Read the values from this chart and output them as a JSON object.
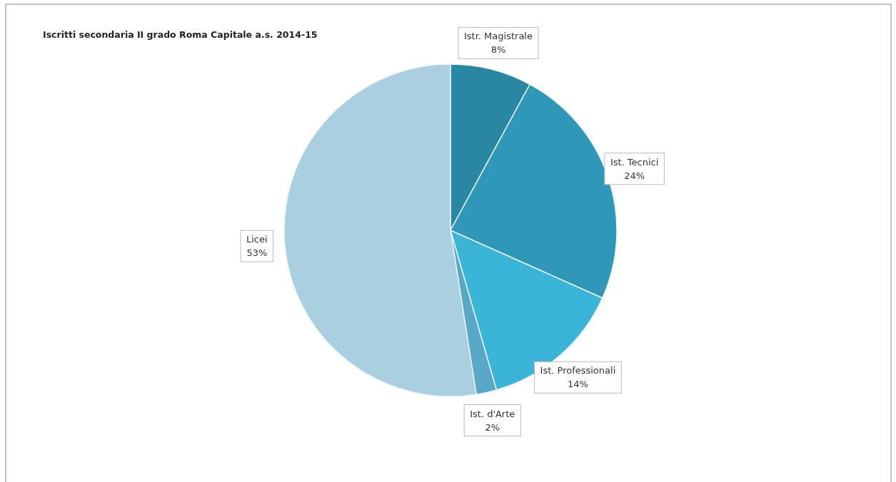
{
  "chart_data": {
    "type": "pie",
    "title": "Iscritti secondaria II grado Roma Capitale a.s. 2014-15",
    "categories": [
      "Istr. Magistrale",
      "Ist. Tecnici",
      "Ist. Professionali",
      "Ist. d'Arte",
      "Licei"
    ],
    "values": [
      8,
      24,
      14,
      2,
      53
    ],
    "colors": [
      "#2a87a3",
      "#2f97b8",
      "#3ab5d8",
      "#5aa8c8",
      "#a9cfe0"
    ],
    "value_labels": [
      "8%",
      "24%",
      "14%",
      "2%",
      "53%"
    ]
  }
}
